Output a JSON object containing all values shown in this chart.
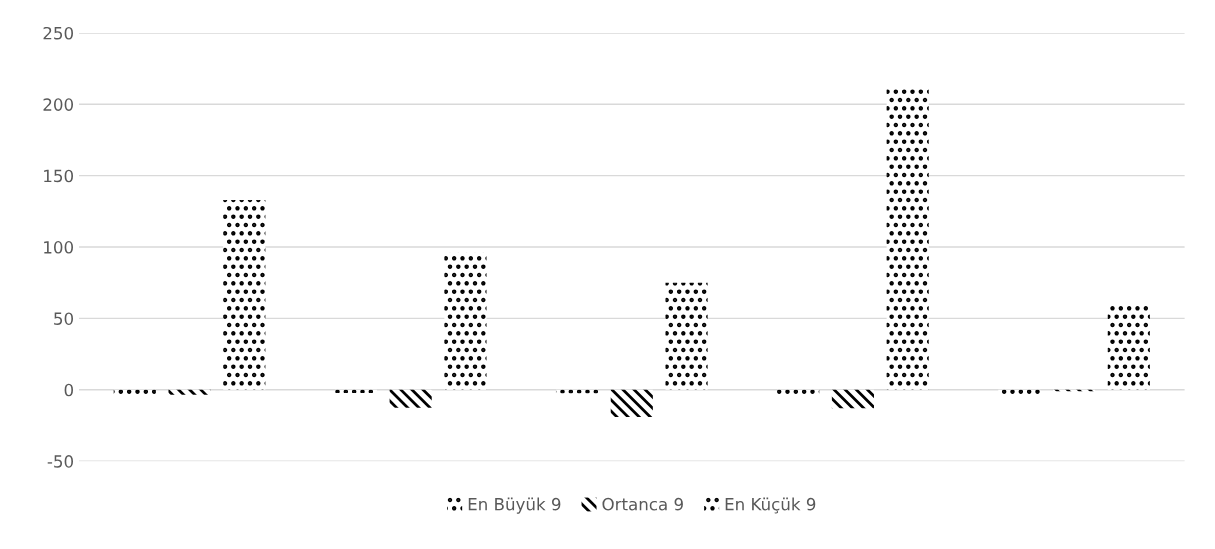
{
  "chart_data": {
    "type": "bar",
    "categories": [
      null,
      null,
      null,
      null,
      null
    ],
    "series": [
      {
        "name": "En Büyük 9",
        "color": "#000000",
        "values": [
          -3.5,
          -2.3,
          -2.5,
          -3,
          -3
        ]
      },
      {
        "name": "Ortanca 9",
        "color": "#000000",
        "values": [
          -3.5,
          -12.6,
          -19,
          -13,
          -1
        ]
      },
      {
        "name": "En Küçük 9",
        "color": "#000000",
        "values": [
          133,
          96,
          75,
          212,
          60
        ]
      }
    ],
    "ylim": [
      -50,
      250
    ],
    "yticks": [
      -50,
      0,
      50,
      100,
      150,
      200,
      250
    ],
    "grid": "y",
    "legend": "bottom"
  }
}
